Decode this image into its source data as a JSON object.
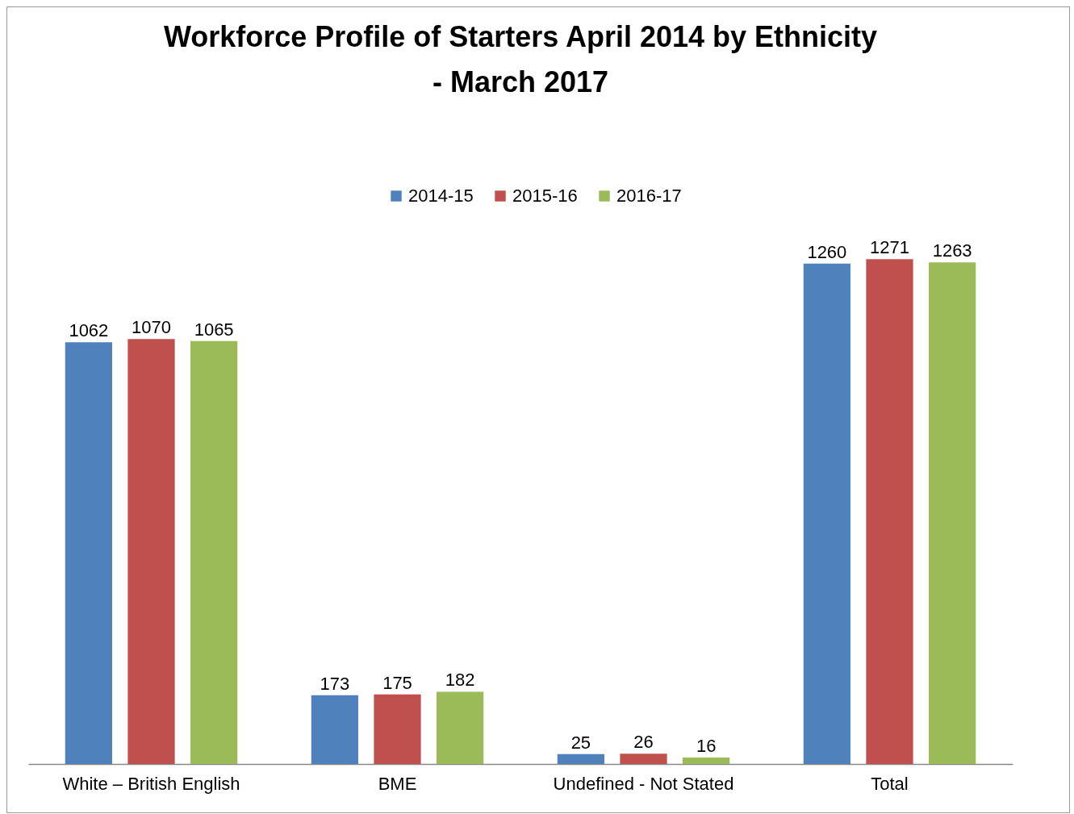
{
  "chart_data": {
    "type": "bar",
    "title": "Workforce Profile of Starters April 2014 by Ethnicity - March 2017",
    "categories": [
      "White – British English",
      "BME",
      "Undefined - Not Stated",
      "Total"
    ],
    "series": [
      {
        "name": "2014-15",
        "color": "#4f81bd",
        "values": [
          1062,
          173,
          25,
          1260
        ]
      },
      {
        "name": "2015-16",
        "color": "#c0504d",
        "values": [
          1070,
          175,
          26,
          1271
        ]
      },
      {
        "name": "2016-17",
        "color": "#9bbb59",
        "values": [
          1065,
          182,
          16,
          1263
        ]
      }
    ],
    "data_labels": true,
    "legend": "top",
    "tick_labels": "x"
  }
}
